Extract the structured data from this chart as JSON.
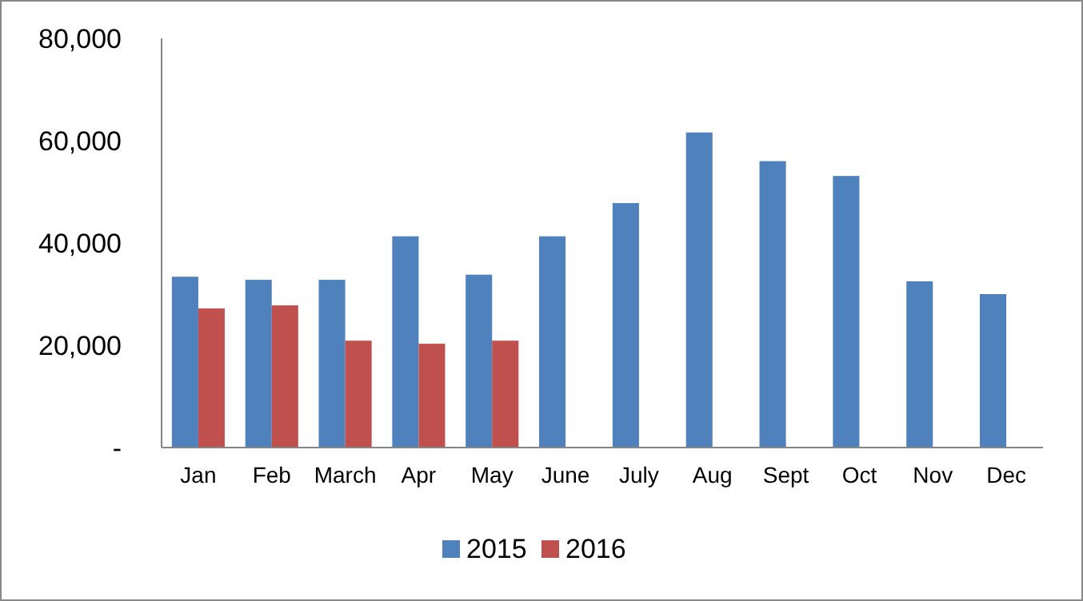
{
  "chart_data": {
    "type": "bar",
    "categories": [
      "Jan",
      "Feb",
      "March",
      "Apr",
      "May",
      "June",
      "July",
      "Aug",
      "Sept",
      "Oct",
      "Nov",
      "Dec"
    ],
    "series": [
      {
        "name": "2015",
        "color": "#4f81bd",
        "values": [
          33400,
          32800,
          32800,
          41300,
          33800,
          41300,
          47800,
          61600,
          56000,
          53100,
          32500,
          30000
        ]
      },
      {
        "name": "2016",
        "color": "#c0504d",
        "values": [
          27200,
          27800,
          20900,
          20300,
          20900,
          null,
          null,
          null,
          null,
          null,
          null,
          null
        ]
      }
    ],
    "ylim": [
      0,
      80000
    ],
    "yticks": [
      {
        "value": 0,
        "label": "-"
      },
      {
        "value": 20000,
        "label": "20,000"
      },
      {
        "value": 40000,
        "label": "40,000"
      },
      {
        "value": 60000,
        "label": "60,000"
      },
      {
        "value": 80000,
        "label": "80,000"
      }
    ],
    "grid": false,
    "legend": "bottom"
  }
}
